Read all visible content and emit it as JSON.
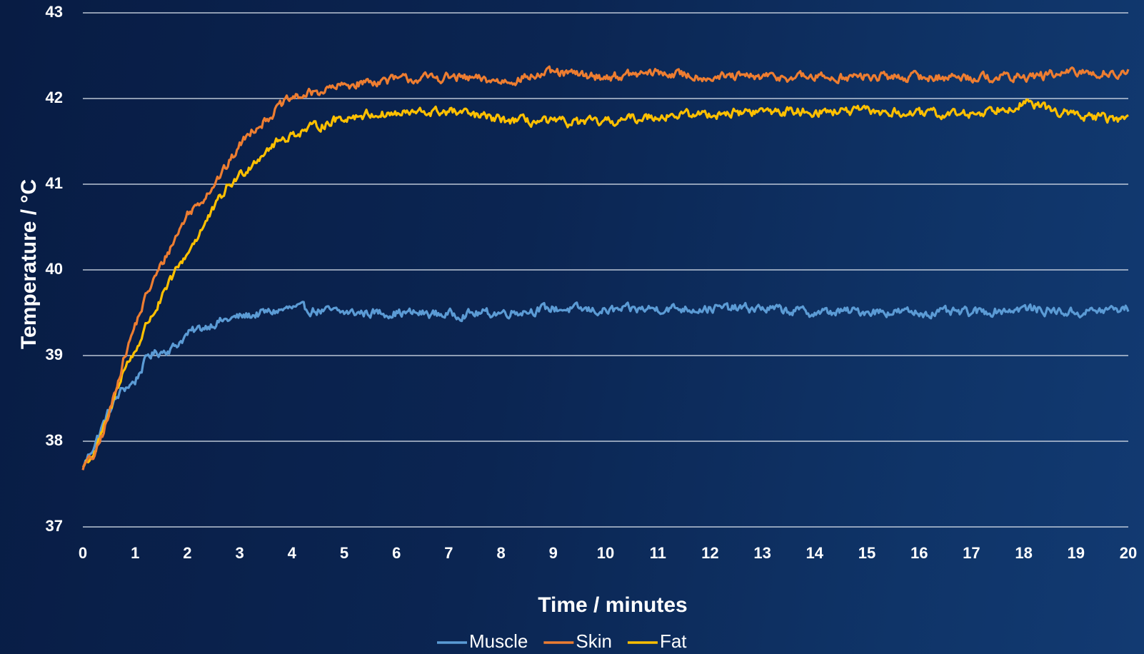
{
  "chart_data": {
    "type": "line",
    "title": "",
    "xlabel": "Time / minutes",
    "ylabel": "Temperature / °C",
    "xlim": [
      0,
      20
    ],
    "ylim": [
      37,
      43
    ],
    "x_ticks": [
      "0",
      "1",
      "2",
      "3",
      "4",
      "5",
      "6",
      "7",
      "8",
      "9",
      "10",
      "11",
      "12",
      "13",
      "14",
      "15",
      "16",
      "17",
      "18",
      "19",
      "20"
    ],
    "y_ticks": [
      "37",
      "38",
      "39",
      "40",
      "41",
      "42",
      "43"
    ],
    "grid": "horizontal",
    "legend_position": "bottom",
    "series": [
      {
        "name": "Muscle",
        "color": "#5b9bd5",
        "x": [
          0,
          0.25,
          0.5,
          0.75,
          1,
          1.25,
          1.5,
          1.75,
          2,
          2.5,
          3,
          3.5,
          4,
          5,
          6,
          7,
          8,
          9,
          10,
          11,
          12,
          13,
          14,
          15,
          16,
          17,
          18,
          19,
          20
        ],
        "y": [
          37.7,
          38.0,
          38.35,
          38.6,
          38.7,
          39.0,
          39.05,
          39.1,
          39.25,
          39.38,
          39.45,
          39.5,
          39.55,
          39.5,
          39.5,
          39.48,
          39.5,
          39.55,
          39.52,
          39.55,
          39.55,
          39.55,
          39.5,
          39.52,
          39.5,
          39.5,
          39.55,
          39.5,
          39.55
        ]
      },
      {
        "name": "Skin",
        "color": "#ed7d31",
        "x": [
          0,
          0.25,
          0.5,
          0.75,
          1,
          1.25,
          1.5,
          1.75,
          2,
          2.25,
          2.5,
          2.75,
          3,
          3.25,
          3.5,
          3.75,
          4,
          4.5,
          5,
          5.5,
          6,
          7,
          8,
          9,
          10,
          11,
          12,
          13,
          14,
          15,
          16,
          17,
          18,
          19,
          20
        ],
        "y": [
          37.7,
          37.85,
          38.3,
          38.9,
          39.35,
          39.75,
          40.05,
          40.35,
          40.65,
          40.8,
          41.0,
          41.2,
          41.45,
          41.65,
          41.75,
          41.9,
          42.0,
          42.08,
          42.15,
          42.2,
          42.22,
          42.25,
          42.2,
          42.3,
          42.25,
          42.3,
          42.25,
          42.25,
          42.25,
          42.25,
          42.25,
          42.25,
          42.25,
          42.3,
          42.3
        ]
      },
      {
        "name": "Fat",
        "color": "#ffc000",
        "x": [
          0,
          0.25,
          0.5,
          0.75,
          1,
          1.25,
          1.5,
          1.75,
          2,
          2.25,
          2.5,
          2.75,
          3,
          3.25,
          3.5,
          3.75,
          4,
          4.5,
          5,
          5.5,
          6,
          7,
          8,
          9,
          10,
          11,
          12,
          13,
          14,
          15,
          16,
          17,
          18,
          19,
          20
        ],
        "y": [
          37.7,
          37.9,
          38.3,
          38.8,
          39.05,
          39.4,
          39.65,
          39.95,
          40.2,
          40.45,
          40.7,
          40.95,
          41.1,
          41.25,
          41.4,
          41.5,
          41.58,
          41.68,
          41.78,
          41.82,
          41.82,
          41.85,
          41.75,
          41.72,
          41.72,
          41.8,
          41.82,
          41.85,
          41.85,
          41.85,
          41.82,
          41.82,
          41.95,
          41.8,
          41.75
        ]
      }
    ]
  }
}
